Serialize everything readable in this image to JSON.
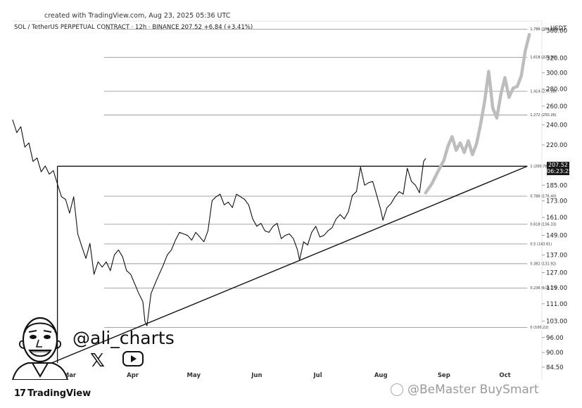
{
  "header": {
    "created": "created with TradingView.com, Aug 23, 2025 05:36 UTC",
    "symbol_line": "SOL / TetherUS PERPETUAL CONTRACT · 12h · BINANCE  207.52  +6.84 (+3.41%)",
    "currency": "USDT"
  },
  "price_tag": {
    "price": "207.52",
    "countdown": "06:23:25"
  },
  "branding": {
    "logo": "TradingView",
    "handle": "@ali_charts",
    "watermark": "@BeMaster BuySmart"
  },
  "colors": {
    "price_line": "#111111",
    "projection": "#bdbdbd",
    "fib_line": "#888888",
    "background": "#ffffff"
  },
  "icons": {
    "x": "x-logo-icon",
    "youtube": "youtube-icon",
    "avatar": "avatar-caricature-icon",
    "watermark": "bemaster-icon"
  },
  "chart_data": {
    "type": "line",
    "title": "",
    "xlabel": "",
    "ylabel": "",
    "y_scale": "log",
    "ylim": [
      80,
      375
    ],
    "x_range": [
      "2025-02-01",
      "2025-10-15"
    ],
    "x_ticks": [
      {
        "label": "Mar",
        "date": "2025-03-01"
      },
      {
        "label": "Apr",
        "date": "2025-04-01"
      },
      {
        "label": "May",
        "date": "2025-05-01"
      },
      {
        "label": "Jun",
        "date": "2025-06-01"
      },
      {
        "label": "Jul",
        "date": "2025-07-01"
      },
      {
        "label": "Aug",
        "date": "2025-08-01"
      },
      {
        "label": "Sep",
        "date": "2025-09-01"
      },
      {
        "label": "Oct",
        "date": "2025-10-01"
      }
    ],
    "y_ticks": [
      "360.00",
      "320.00",
      "300.00",
      "280.00",
      "260.00",
      "240.00",
      "220.00",
      "185.00",
      "173.00",
      "161.00",
      "149.00",
      "137.00",
      "127.00",
      "119.00",
      "111.00",
      "103.00",
      "96.00",
      "90.00",
      "84.50"
    ],
    "fib_levels": [
      {
        "ratio": "1.786",
        "price": 362.23,
        "label": "1.786 (362.23)"
      },
      {
        "ratio": "1.618",
        "price": 320.89,
        "label": "1.618 (320.89)"
      },
      {
        "ratio": "1.414",
        "price": 277.18,
        "label": "1.414 (277.18)"
      },
      {
        "ratio": "1.272",
        "price": 250.26,
        "label": "1.272 (250.26)"
      },
      {
        "ratio": "1",
        "price": 200.76,
        "label": "1 (200.76)"
      },
      {
        "ratio": "0.786",
        "price": 176.4,
        "label": "0.786 (176.40)"
      },
      {
        "ratio": "0.618",
        "price": 156.33,
        "label": "0.618 (156.33)"
      },
      {
        "ratio": "0.5",
        "price": 143.61,
        "label": "0.5 (143.61)"
      },
      {
        "ratio": "0.382",
        "price": 131.92,
        "label": "0.382 (131.92)"
      },
      {
        "ratio": "0.236",
        "price": 118.77,
        "label": "0.236 (118.77)"
      },
      {
        "ratio": "0",
        "price": 100.22,
        "label": "0 (100.22)"
      }
    ],
    "series": [
      {
        "values": [
          [
            "2025-02-01",
            245
          ],
          [
            "2025-02-03",
            232
          ],
          [
            "2025-02-05",
            238
          ],
          [
            "2025-02-07",
            218
          ],
          [
            "2025-02-09",
            222
          ],
          [
            "2025-02-11",
            205
          ],
          [
            "2025-02-13",
            208
          ],
          [
            "2025-02-15",
            196
          ],
          [
            "2025-02-17",
            201
          ],
          [
            "2025-02-19",
            194
          ],
          [
            "2025-02-21",
            197
          ],
          [
            "2025-02-23",
            186
          ],
          [
            "2025-02-25",
            176
          ],
          [
            "2025-02-27",
            174
          ],
          [
            "2025-03-01",
            164
          ],
          [
            "2025-03-03",
            176
          ],
          [
            "2025-03-05",
            150
          ],
          [
            "2025-03-07",
            142
          ],
          [
            "2025-03-09",
            135
          ],
          [
            "2025-03-11",
            144
          ],
          [
            "2025-03-13",
            126
          ],
          [
            "2025-03-15",
            133
          ],
          [
            "2025-03-17",
            130
          ],
          [
            "2025-03-19",
            133
          ],
          [
            "2025-03-21",
            128
          ],
          [
            "2025-03-23",
            137
          ],
          [
            "2025-03-25",
            140
          ],
          [
            "2025-03-27",
            136
          ],
          [
            "2025-03-29",
            128
          ],
          [
            "2025-03-31",
            126
          ],
          [
            "2025-04-02",
            121
          ],
          [
            "2025-04-04",
            116
          ],
          [
            "2025-04-06",
            112
          ],
          [
            "2025-04-07",
            103
          ],
          [
            "2025-04-08",
            101
          ],
          [
            "2025-04-10",
            116
          ],
          [
            "2025-04-12",
            121
          ],
          [
            "2025-04-14",
            126
          ],
          [
            "2025-04-16",
            131
          ],
          [
            "2025-04-18",
            137
          ],
          [
            "2025-04-20",
            140
          ],
          [
            "2025-04-22",
            146
          ],
          [
            "2025-04-24",
            151
          ],
          [
            "2025-04-26",
            150
          ],
          [
            "2025-04-28",
            149
          ],
          [
            "2025-04-30",
            146
          ],
          [
            "2025-05-02",
            151
          ],
          [
            "2025-05-04",
            148
          ],
          [
            "2025-05-06",
            145
          ],
          [
            "2025-05-08",
            152
          ],
          [
            "2025-05-10",
            173
          ],
          [
            "2025-05-12",
            176
          ],
          [
            "2025-05-14",
            178
          ],
          [
            "2025-05-16",
            170
          ],
          [
            "2025-05-18",
            172
          ],
          [
            "2025-05-20",
            168
          ],
          [
            "2025-05-22",
            178
          ],
          [
            "2025-05-24",
            176
          ],
          [
            "2025-05-26",
            174
          ],
          [
            "2025-05-28",
            170
          ],
          [
            "2025-05-30",
            160
          ],
          [
            "2025-06-01",
            155
          ],
          [
            "2025-06-03",
            157
          ],
          [
            "2025-06-05",
            152
          ],
          [
            "2025-06-07",
            151
          ],
          [
            "2025-06-09",
            155
          ],
          [
            "2025-06-11",
            157
          ],
          [
            "2025-06-13",
            147
          ],
          [
            "2025-06-15",
            149
          ],
          [
            "2025-06-17",
            150
          ],
          [
            "2025-06-19",
            147
          ],
          [
            "2025-06-21",
            140
          ],
          [
            "2025-06-22",
            134
          ],
          [
            "2025-06-24",
            145
          ],
          [
            "2025-06-26",
            143
          ],
          [
            "2025-06-28",
            151
          ],
          [
            "2025-06-30",
            155
          ],
          [
            "2025-07-02",
            148
          ],
          [
            "2025-07-04",
            149
          ],
          [
            "2025-07-06",
            152
          ],
          [
            "2025-07-08",
            154
          ],
          [
            "2025-07-10",
            160
          ],
          [
            "2025-07-12",
            163
          ],
          [
            "2025-07-14",
            160
          ],
          [
            "2025-07-16",
            165
          ],
          [
            "2025-07-18",
            177
          ],
          [
            "2025-07-20",
            180
          ],
          [
            "2025-07-22",
            200
          ],
          [
            "2025-07-24",
            185
          ],
          [
            "2025-07-26",
            187
          ],
          [
            "2025-07-28",
            188
          ],
          [
            "2025-07-30",
            177
          ],
          [
            "2025-08-01",
            166
          ],
          [
            "2025-08-02",
            159
          ],
          [
            "2025-08-04",
            168
          ],
          [
            "2025-08-06",
            171
          ],
          [
            "2025-08-08",
            176
          ],
          [
            "2025-08-10",
            180
          ],
          [
            "2025-08-12",
            178
          ],
          [
            "2025-08-14",
            199
          ],
          [
            "2025-08-16",
            188
          ],
          [
            "2025-08-18",
            185
          ],
          [
            "2025-08-20",
            179
          ],
          [
            "2025-08-22",
            205
          ],
          [
            "2025-08-23",
            207.5
          ]
        ]
      },
      {
        "values": [
          [
            "2025-08-23",
            179
          ],
          [
            "2025-08-26",
            186
          ],
          [
            "2025-08-29",
            196
          ],
          [
            "2025-09-01",
            206
          ],
          [
            "2025-09-03",
            219
          ],
          [
            "2025-09-05",
            228
          ],
          [
            "2025-09-07",
            215
          ],
          [
            "2025-09-09",
            222
          ],
          [
            "2025-09-11",
            213
          ],
          [
            "2025-09-13",
            224
          ],
          [
            "2025-09-15",
            211
          ],
          [
            "2025-09-17",
            221
          ],
          [
            "2025-09-19",
            240
          ],
          [
            "2025-09-21",
            265
          ],
          [
            "2025-09-23",
            302
          ],
          [
            "2025-09-25",
            258
          ],
          [
            "2025-09-27",
            247
          ],
          [
            "2025-09-29",
            274
          ],
          [
            "2025-10-01",
            294
          ],
          [
            "2025-10-03",
            270
          ],
          [
            "2025-10-05",
            281
          ],
          [
            "2025-10-07",
            283
          ],
          [
            "2025-10-09",
            296
          ],
          [
            "2025-10-11",
            330
          ],
          [
            "2025-10-13",
            354
          ]
        ]
      }
    ],
    "annotations": [
      {
        "type": "support_trendline",
        "from": [
          "2025-02-20",
          86
        ],
        "to": [
          "2025-10-12",
          200.76
        ]
      },
      {
        "type": "resistance_line",
        "from": [
          "2025-02-23",
          200.76
        ],
        "to": [
          "2025-10-12",
          200.76
        ]
      },
      {
        "type": "vertical_line",
        "date": "2025-02-23",
        "from_price": 86,
        "to_price": 200.76
      }
    ]
  }
}
